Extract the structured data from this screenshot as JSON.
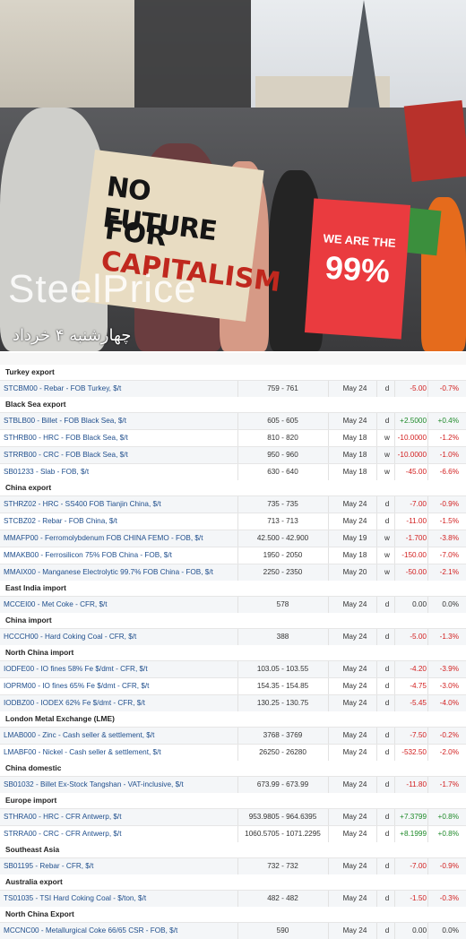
{
  "hero": {
    "sign_left_line1": "NO FUTURE",
    "sign_left_line2_prefix": "FOR ",
    "sign_left_line2_red": "CAPITALISM",
    "sign_right_line1": "WE ARE THE",
    "sign_right_line2": "99%",
    "watermark": "SteelPrice",
    "date_fa": "چهارشنبه ۴ خرداد"
  },
  "sections": [
    {
      "title": "Turkey export",
      "rows": [
        {
          "symbol": "STCBM00 - Rebar - FOB Turkey, $/t",
          "range": "759 - 761",
          "date": "May 24",
          "freq": "d",
          "change": "-5.00",
          "pct": "-0.7%",
          "dir": "neg"
        }
      ]
    },
    {
      "title": "Black Sea export",
      "rows": [
        {
          "symbol": "STBLB00 - Billet - FOB Black Sea, $/t",
          "range": "605 - 605",
          "date": "May 24",
          "freq": "d",
          "change": "+2.5000",
          "pct": "+0.4%",
          "dir": "pos"
        },
        {
          "symbol": "STHRB00 - HRC - FOB Black Sea, $/t",
          "range": "810 - 820",
          "date": "May 18",
          "freq": "w",
          "change": "-10.0000",
          "pct": "-1.2%",
          "dir": "neg"
        },
        {
          "symbol": "STRRB00 - CRC - FOB Black Sea, $/t",
          "range": "950 - 960",
          "date": "May 18",
          "freq": "w",
          "change": "-10.0000",
          "pct": "-1.0%",
          "dir": "neg"
        },
        {
          "symbol": "SB01233 - Slab - FOB, $/t",
          "range": "630 - 640",
          "date": "May 18",
          "freq": "w",
          "change": "-45.00",
          "pct": "-6.6%",
          "dir": "neg"
        }
      ]
    },
    {
      "title": "China export",
      "rows": [
        {
          "symbol": "STHRZ02 - HRC - SS400 FOB Tianjin China, $/t",
          "range": "735 - 735",
          "date": "May 24",
          "freq": "d",
          "change": "-7.00",
          "pct": "-0.9%",
          "dir": "neg"
        },
        {
          "symbol": "STCBZ02 - Rebar - FOB China, $/t",
          "range": "713 - 713",
          "date": "May 24",
          "freq": "d",
          "change": "-11.00",
          "pct": "-1.5%",
          "dir": "neg"
        },
        {
          "symbol": "MMAFP00 - Ferromolybdenum FOB CHINA FEMO - FOB, $/t",
          "range": "42.500 - 42.900",
          "date": "May 19",
          "freq": "w",
          "change": "-1.700",
          "pct": "-3.8%",
          "dir": "neg"
        },
        {
          "symbol": "MMAKB00 - Ferrosilicon 75% FOB China - FOB, $/t",
          "range": "1950 - 2050",
          "date": "May 18",
          "freq": "w",
          "change": "-150.00",
          "pct": "-7.0%",
          "dir": "neg"
        },
        {
          "symbol": "MMAIX00 - Manganese Electrolytic 99.7% FOB China - FOB, $/t",
          "range": "2250 - 2350",
          "date": "May 20",
          "freq": "w",
          "change": "-50.00",
          "pct": "-2.1%",
          "dir": "neg"
        }
      ]
    },
    {
      "title": "East India import",
      "rows": [
        {
          "symbol": "MCCEI00 - Met Coke - CFR, $/t",
          "range": "578",
          "date": "May 24",
          "freq": "d",
          "change": "0.00",
          "pct": "0.0%",
          "dir": "zero"
        }
      ]
    },
    {
      "title": "China import",
      "rows": [
        {
          "symbol": "HCCCH00 - Hard Coking Coal - CFR, $/t",
          "range": "388",
          "date": "May 24",
          "freq": "d",
          "change": "-5.00",
          "pct": "-1.3%",
          "dir": "neg"
        }
      ]
    },
    {
      "title": "North China import",
      "rows": [
        {
          "symbol": "IODFE00 - IO fines 58% Fe $/dmt - CFR, $/t",
          "range": "103.05 - 103.55",
          "date": "May 24",
          "freq": "d",
          "change": "-4.20",
          "pct": "-3.9%",
          "dir": "neg"
        },
        {
          "symbol": "IOPRM00 - IO fines 65% Fe $/dmt - CFR, $/t",
          "range": "154.35 - 154.85",
          "date": "May 24",
          "freq": "d",
          "change": "-4.75",
          "pct": "-3.0%",
          "dir": "neg"
        },
        {
          "symbol": "IODBZ00 - IODEX 62% Fe $/dmt - CFR, $/t",
          "range": "130.25 - 130.75",
          "date": "May 24",
          "freq": "d",
          "change": "-5.45",
          "pct": "-4.0%",
          "dir": "neg"
        }
      ]
    },
    {
      "title": "London Metal Exchange (LME)",
      "rows": [
        {
          "symbol": "LMAB000 - Zinc - Cash seller & settlement, $/t",
          "range": "3768 - 3769",
          "date": "May 24",
          "freq": "d",
          "change": "-7.50",
          "pct": "-0.2%",
          "dir": "neg"
        },
        {
          "symbol": "LMABF00 - Nickel - Cash seller & settlement, $/t",
          "range": "26250 - 26280",
          "date": "May 24",
          "freq": "d",
          "change": "-532.50",
          "pct": "-2.0%",
          "dir": "neg"
        }
      ]
    },
    {
      "title": "China domestic",
      "rows": [
        {
          "symbol": "SB01032 - Billet Ex-Stock Tangshan - VAT-inclusive, $/t",
          "range": "673.99 - 673.99",
          "date": "May 24",
          "freq": "d",
          "change": "-11.80",
          "pct": "-1.7%",
          "dir": "neg"
        }
      ]
    },
    {
      "title": "Europe import",
      "rows": [
        {
          "symbol": "STHRA00 - HRC - CFR Antwerp, $/t",
          "range": "953.9805 - 964.6395",
          "date": "May 24",
          "freq": "d",
          "change": "+7.3799",
          "pct": "+0.8%",
          "dir": "pos"
        },
        {
          "symbol": "STRRA00 - CRC - CFR Antwerp, $/t",
          "range": "1060.5705 - 1071.2295",
          "date": "May 24",
          "freq": "d",
          "change": "+8.1999",
          "pct": "+0.8%",
          "dir": "pos"
        }
      ]
    },
    {
      "title": "Southeast Asia",
      "rows": [
        {
          "symbol": "SB01195 - Rebar - CFR, $/t",
          "range": "732 - 732",
          "date": "May 24",
          "freq": "d",
          "change": "-7.00",
          "pct": "-0.9%",
          "dir": "neg"
        }
      ]
    },
    {
      "title": "Australia export",
      "rows": [
        {
          "symbol": "TS01035 - TSI Hard Coking Coal - $/ton, $/t",
          "range": "482 - 482",
          "date": "May 24",
          "freq": "d",
          "change": "-1.50",
          "pct": "-0.3%",
          "dir": "neg"
        }
      ]
    },
    {
      "title": "North China Export",
      "rows": [
        {
          "symbol": "MCCNC00 - Metallurgical Coke 66/65 CSR - FOB, $/t",
          "range": "590",
          "date": "May 24",
          "freq": "d",
          "change": "0.00",
          "pct": "0.0%",
          "dir": "zero"
        }
      ]
    }
  ]
}
